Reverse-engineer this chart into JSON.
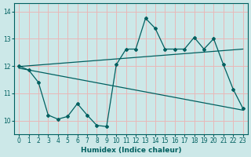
{
  "xlabel": "Humidex (Indice chaleur)",
  "xlim": [
    -0.5,
    23.5
  ],
  "ylim": [
    9.5,
    14.3
  ],
  "xticks": [
    0,
    1,
    2,
    3,
    4,
    5,
    6,
    7,
    8,
    9,
    10,
    11,
    12,
    13,
    14,
    15,
    16,
    17,
    18,
    19,
    20,
    21,
    22,
    23
  ],
  "yticks": [
    10,
    11,
    12,
    13,
    14
  ],
  "bg_color": "#cce8e8",
  "grid_color": "#e8b8b8",
  "line_color": "#006060",
  "line1_x": [
    0,
    1,
    2,
    3,
    4,
    5,
    6,
    7,
    8,
    9,
    10,
    11,
    12,
    13,
    14,
    15,
    16,
    17,
    18,
    19,
    20,
    21,
    22,
    23
  ],
  "line1_y": [
    12.0,
    11.85,
    11.4,
    10.2,
    10.05,
    10.15,
    10.62,
    10.2,
    9.82,
    9.78,
    12.05,
    12.62,
    12.62,
    13.75,
    13.38,
    12.62,
    12.62,
    12.62,
    13.05,
    12.62,
    13.0,
    12.05,
    11.15,
    10.45
  ],
  "line2_x": [
    0,
    23
  ],
  "line2_y": [
    11.98,
    12.62
  ],
  "line3_x": [
    0,
    23
  ],
  "line3_y": [
    11.92,
    10.38
  ]
}
